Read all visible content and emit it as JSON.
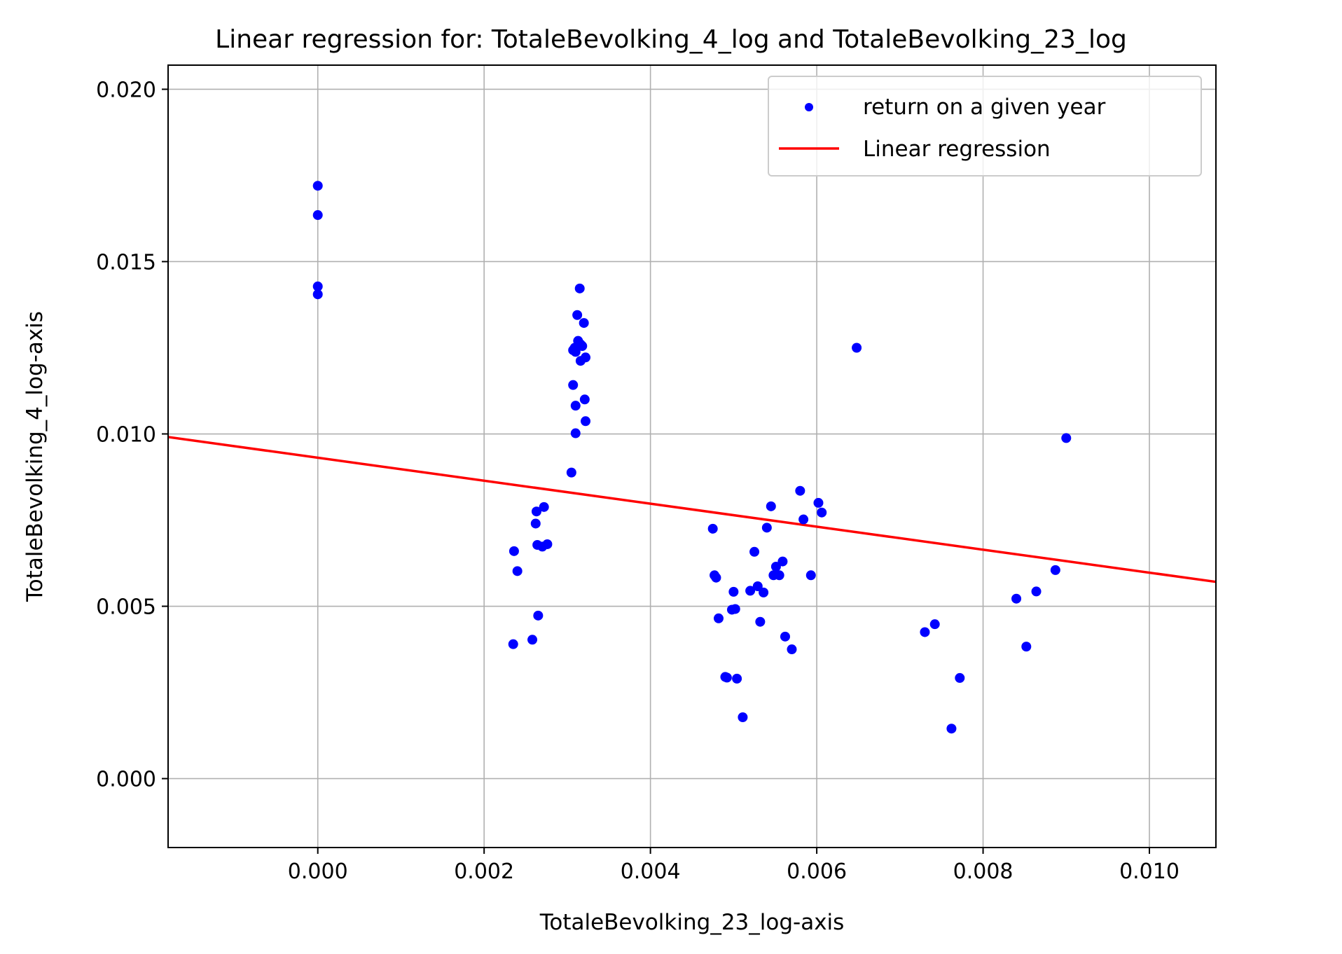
{
  "chart_data": {
    "type": "scatter",
    "title": "Linear regression for: TotaleBevolking_4_log and TotaleBevolking_23_log",
    "xlabel": "TotaleBevolking_23_log-axis",
    "ylabel": "TotaleBevolking_4_log-axis",
    "xlim": [
      -0.0018,
      0.0108
    ],
    "ylim": [
      -0.002,
      0.0207
    ],
    "xticks": [
      0.0,
      0.002,
      0.004,
      0.006,
      0.008,
      0.01
    ],
    "xtick_labels": [
      "0.000",
      "0.002",
      "0.004",
      "0.006",
      "0.008",
      "0.010"
    ],
    "yticks": [
      0.0,
      0.005,
      0.01,
      0.015,
      0.02
    ],
    "ytick_labels": [
      "0.000",
      "0.005",
      "0.010",
      "0.015",
      "0.020"
    ],
    "grid": true,
    "legend_position": "top-right",
    "series": [
      {
        "name": "return on a given year",
        "kind": "scatter",
        "color": "#0000ff",
        "points": [
          [
            0.0,
            0.0172
          ],
          [
            0.0,
            0.01635
          ],
          [
            0.0,
            0.01428
          ],
          [
            0.0,
            0.01405
          ],
          [
            0.00315,
            0.01422
          ],
          [
            0.00312,
            0.01345
          ],
          [
            0.0032,
            0.01322
          ],
          [
            0.00313,
            0.0127
          ],
          [
            0.00316,
            0.0126
          ],
          [
            0.00309,
            0.0125
          ],
          [
            0.00318,
            0.01255
          ],
          [
            0.00307,
            0.01243
          ],
          [
            0.0031,
            0.01238
          ],
          [
            0.00322,
            0.01222
          ],
          [
            0.00316,
            0.01212
          ],
          [
            0.00307,
            0.01142
          ],
          [
            0.00321,
            0.011
          ],
          [
            0.0031,
            0.01082
          ],
          [
            0.00322,
            0.01037
          ],
          [
            0.0031,
            0.01002
          ],
          [
            0.00305,
            0.00888
          ],
          [
            0.00648,
            0.0125
          ],
          [
            0.009,
            0.00988
          ],
          [
            0.00272,
            0.00788
          ],
          [
            0.00263,
            0.00775
          ],
          [
            0.00262,
            0.0074
          ],
          [
            0.00236,
            0.0066
          ],
          [
            0.00264,
            0.00678
          ],
          [
            0.0027,
            0.00673
          ],
          [
            0.00276,
            0.0068
          ],
          [
            0.0024,
            0.00602
          ],
          [
            0.00265,
            0.00473
          ],
          [
            0.00235,
            0.0039
          ],
          [
            0.00258,
            0.00403
          ],
          [
            0.00475,
            0.00725
          ],
          [
            0.00477,
            0.0059
          ],
          [
            0.00479,
            0.00583
          ],
          [
            0.00482,
            0.00465
          ],
          [
            0.0049,
            0.00295
          ],
          [
            0.00492,
            0.00293
          ],
          [
            0.00498,
            0.0049
          ],
          [
            0.005,
            0.00542
          ],
          [
            0.00502,
            0.00492
          ],
          [
            0.00504,
            0.0029
          ],
          [
            0.00511,
            0.00178
          ],
          [
            0.0052,
            0.00545
          ],
          [
            0.00525,
            0.00658
          ],
          [
            0.00529,
            0.00558
          ],
          [
            0.00532,
            0.00455
          ],
          [
            0.00536,
            0.0054
          ],
          [
            0.0054,
            0.00728
          ],
          [
            0.00545,
            0.0079
          ],
          [
            0.00548,
            0.0059
          ],
          [
            0.00551,
            0.00615
          ],
          [
            0.00555,
            0.0059
          ],
          [
            0.00559,
            0.0063
          ],
          [
            0.00562,
            0.00412
          ],
          [
            0.0057,
            0.00375
          ],
          [
            0.0058,
            0.00835
          ],
          [
            0.00584,
            0.00752
          ],
          [
            0.00593,
            0.0059
          ],
          [
            0.00602,
            0.008
          ],
          [
            0.00606,
            0.00772
          ],
          [
            0.0073,
            0.00425
          ],
          [
            0.00742,
            0.00448
          ],
          [
            0.00762,
            0.00145
          ],
          [
            0.00772,
            0.00292
          ],
          [
            0.0084,
            0.00522
          ],
          [
            0.00852,
            0.00383
          ],
          [
            0.00864,
            0.00543
          ],
          [
            0.00887,
            0.00605
          ]
        ]
      },
      {
        "name": "Linear regression",
        "kind": "line",
        "color": "#ff0000",
        "slope": -0.3335,
        "intercept": 0.00931
      }
    ]
  }
}
